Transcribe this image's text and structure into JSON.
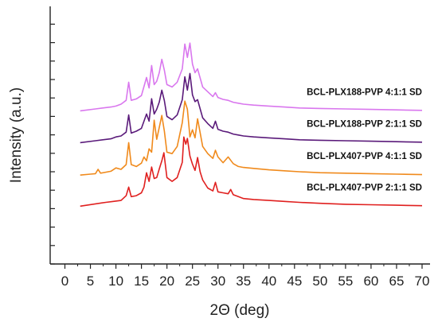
{
  "chart_data": {
    "type": "line",
    "xlabel": "2Θ (deg)",
    "ylabel": "Intensity (a.u.)",
    "xlim": [
      0,
      70
    ],
    "x_ticks": [
      0,
      5,
      10,
      15,
      20,
      25,
      30,
      35,
      40,
      45,
      50,
      55,
      60,
      65,
      70
    ],
    "y_ticks_labeled": false,
    "grid": false,
    "legend": "inline labels right of traces",
    "series": [
      {
        "name": "BCL-PLX407-PVP 2:1:1 SD",
        "color": "#e0201f",
        "baseline": 300,
        "x": [
          3,
          8,
          9.5,
          11,
          12,
          12.5,
          13,
          14,
          15,
          15.5,
          16,
          16.5,
          17,
          17.5,
          18,
          18.5,
          19,
          19.4,
          20,
          21,
          22,
          23,
          23.3,
          23.7,
          24,
          24.5,
          25,
          25.5,
          26,
          26.5,
          27,
          28,
          29,
          29.5,
          30,
          31,
          32,
          32.5,
          33,
          34,
          35,
          37,
          40,
          43,
          46,
          50,
          55,
          60,
          65,
          70
        ],
        "y": [
          0,
          8,
          10,
          12,
          22,
          40,
          20,
          22,
          28,
          40,
          70,
          52,
          82,
          58,
          60,
          78,
          95,
          112,
          60,
          52,
          60,
          92,
          145,
          130,
          142,
          105,
          88,
          75,
          102,
          72,
          55,
          38,
          32,
          50,
          30,
          28,
          26,
          35,
          24,
          20,
          16,
          14,
          12,
          10,
          8,
          6,
          4,
          3,
          2,
          1
        ]
      },
      {
        "name": "BCL-PLX407-PVP 4:1:1 SD",
        "color": "#f08a1c",
        "baseline": 345,
        "x": [
          3,
          5,
          6,
          6.5,
          7,
          9,
          10,
          11,
          12,
          12.5,
          13,
          14,
          15,
          15.5,
          16,
          16.5,
          17,
          17.5,
          18,
          19,
          19.5,
          20,
          21,
          22,
          23,
          23.5,
          24,
          24.5,
          25,
          25.5,
          26,
          27,
          28,
          29,
          29.5,
          30,
          31,
          32,
          33,
          34,
          35,
          37,
          40,
          43,
          46,
          50,
          55,
          60,
          65,
          70
        ],
        "y": [
          0,
          2,
          3,
          12,
          4,
          8,
          15,
          12,
          22,
          68,
          22,
          18,
          25,
          38,
          30,
          55,
          48,
          115,
          75,
          125,
          92,
          48,
          45,
          60,
          110,
          155,
          138,
          80,
          95,
          78,
          118,
          60,
          45,
          35,
          52,
          38,
          26,
          38,
          24,
          18,
          16,
          14,
          11,
          9,
          7,
          5,
          4,
          3,
          2,
          1
        ]
      },
      {
        "name": "BCL-PLX188-PVP 2:1:1 SD",
        "color": "#5a1a7a",
        "baseline": 392,
        "x": [
          3,
          6,
          9,
          10,
          11,
          12,
          12.5,
          13,
          14,
          15,
          16,
          16.5,
          17,
          17.5,
          18,
          18.5,
          19,
          19.5,
          20,
          21,
          22,
          23,
          23.5,
          24,
          24.5,
          25,
          25.5,
          26,
          27,
          28,
          29,
          29.5,
          30,
          31,
          32,
          33,
          34,
          35,
          37,
          40,
          43,
          46,
          50,
          55,
          60,
          65,
          70
        ],
        "y": [
          0,
          4,
          8,
          12,
          14,
          22,
          58,
          20,
          24,
          30,
          60,
          45,
          92,
          60,
          70,
          85,
          110,
          88,
          55,
          48,
          58,
          90,
          138,
          110,
          145,
          100,
          86,
          90,
          52,
          40,
          30,
          45,
          28,
          24,
          22,
          18,
          16,
          14,
          12,
          10,
          8,
          6,
          5,
          4,
          3,
          2,
          1
        ]
      },
      {
        "name": "BCL-PLX188-PVP 4:1:1 SD",
        "color": "#d977ee",
        "baseline": 438,
        "x": [
          3,
          6,
          9,
          10,
          11,
          12,
          12.5,
          13,
          14,
          15,
          16,
          16.5,
          17,
          17.5,
          18,
          18.5,
          19,
          19.5,
          20,
          21,
          22,
          23,
          23.5,
          24,
          24.5,
          25,
          25.5,
          26,
          27,
          28,
          29,
          29.5,
          30,
          31,
          32,
          33,
          34,
          35,
          37,
          40,
          43,
          46,
          50,
          55,
          60,
          65,
          70
        ],
        "y": [
          0,
          4,
          8,
          10,
          14,
          22,
          60,
          22,
          25,
          32,
          70,
          48,
          95,
          55,
          62,
          80,
          108,
          85,
          55,
          50,
          60,
          88,
          140,
          112,
          142,
          98,
          80,
          88,
          50,
          40,
          30,
          38,
          28,
          24,
          22,
          18,
          16,
          14,
          12,
          10,
          8,
          6,
          5,
          4,
          3,
          2,
          1
        ]
      }
    ]
  }
}
